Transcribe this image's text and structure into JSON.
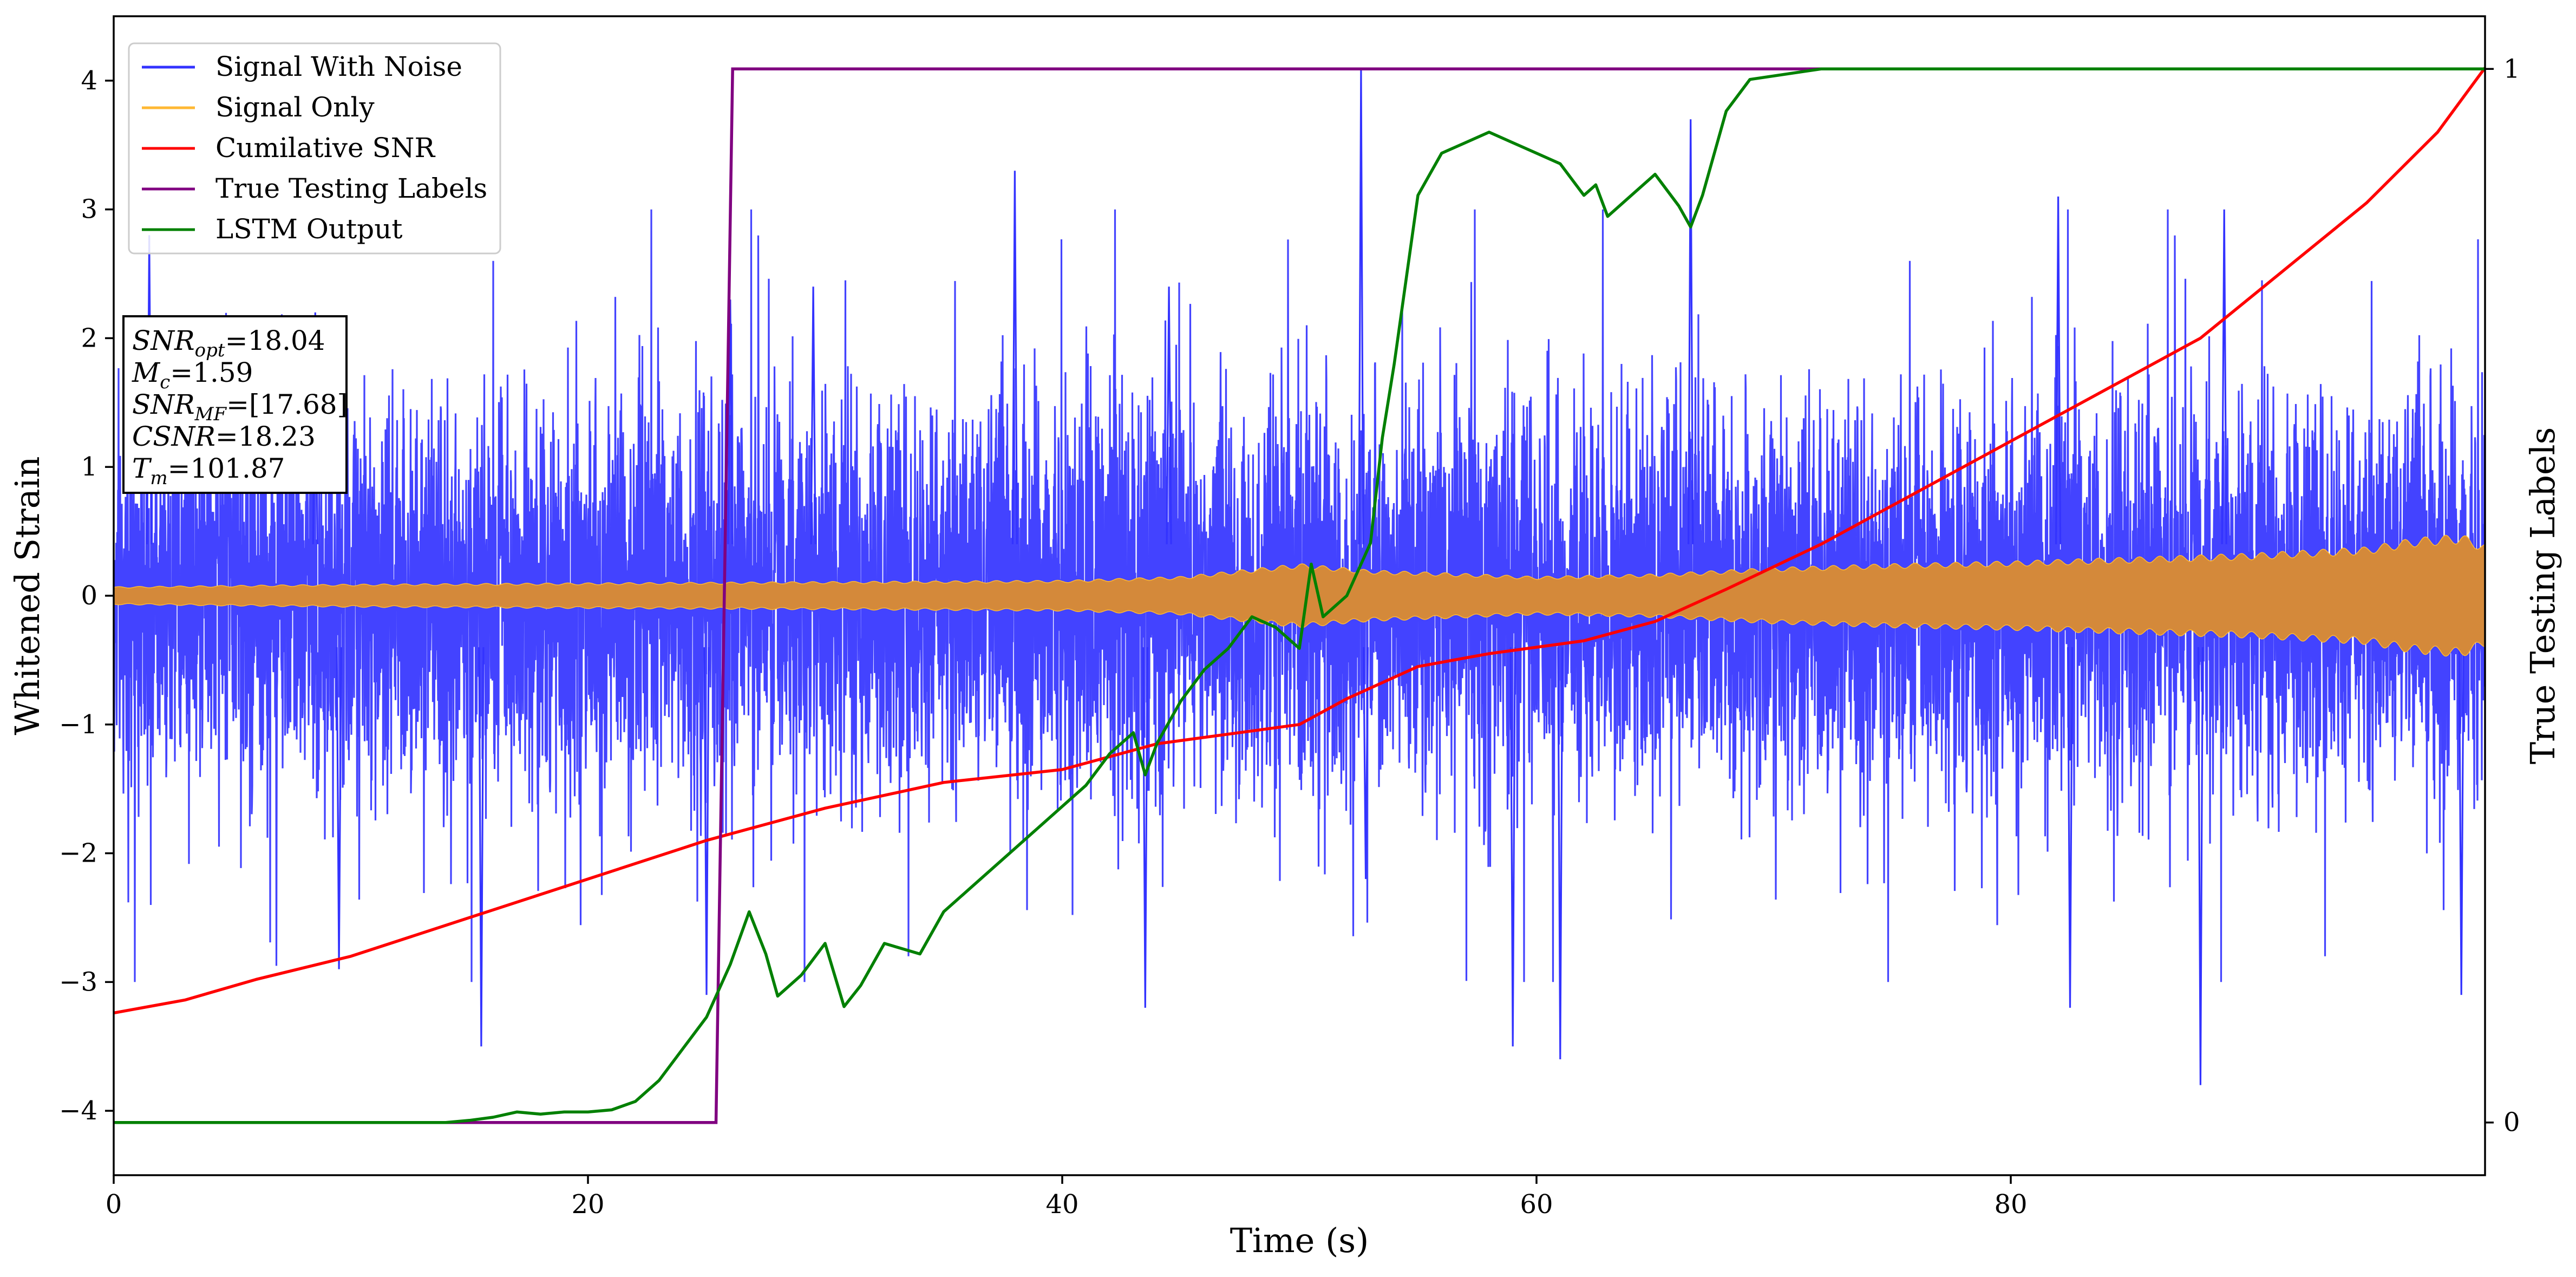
{
  "chart_data": {
    "type": "line",
    "xlabel": "Time (s)",
    "ylabel": "Whitened Strain",
    "y2label": "True Testing Labels",
    "xlim": [
      0,
      100
    ],
    "ylim": [
      -4.5,
      4.5
    ],
    "y2lim": [
      -0.05,
      1.05
    ],
    "x_ticks": [
      0,
      20,
      40,
      60,
      80
    ],
    "y_ticks": [
      -4,
      -3,
      -2,
      -1,
      0,
      1,
      2,
      3,
      4
    ],
    "y2_ticks": [
      0,
      1
    ],
    "grid": false,
    "legend_position": "top-left",
    "colors": {
      "signal_with_noise": "#3333ff",
      "signal_only": "#ffb833",
      "signal_only_fill": "#d4893a",
      "cumulative_snr": "#ff0000",
      "true_labels": "#800080",
      "lstm_output": "#008000"
    },
    "series": [
      {
        "name": "Signal With Noise",
        "axis": "left",
        "style": "dense noisy waveform",
        "envelope_typical_abs": 1.2,
        "peaks": [
          [
            1.5,
            2.8
          ],
          [
            8.5,
            2.2
          ],
          [
            9.5,
            -2.9
          ],
          [
            15.5,
            -3.5
          ],
          [
            25.0,
            -3.1
          ],
          [
            26.0,
            2.3
          ],
          [
            29.5,
            2.4
          ],
          [
            38.0,
            3.3
          ],
          [
            43.5,
            -3.2
          ],
          [
            44.5,
            2.4
          ],
          [
            52.6,
            4.1
          ],
          [
            52.8,
            -2.2
          ],
          [
            59.0,
            -3.5
          ],
          [
            61.0,
            -3.6
          ],
          [
            66.5,
            3.7
          ],
          [
            82.0,
            3.1
          ],
          [
            82.5,
            -3.2
          ],
          [
            88.0,
            -3.8
          ],
          [
            89.0,
            3.0
          ],
          [
            99.0,
            -3.1
          ]
        ]
      },
      {
        "name": "Signal Only",
        "axis": "left",
        "style": "chirp envelope",
        "envelope": [
          [
            0,
            0.07
          ],
          [
            10,
            0.09
          ],
          [
            20,
            0.1
          ],
          [
            30,
            0.11
          ],
          [
            40,
            0.12
          ],
          [
            45,
            0.15
          ],
          [
            50,
            0.25
          ],
          [
            53,
            0.2
          ],
          [
            56,
            0.18
          ],
          [
            60,
            0.15
          ],
          [
            65,
            0.17
          ],
          [
            70,
            0.22
          ],
          [
            75,
            0.25
          ],
          [
            80,
            0.27
          ],
          [
            85,
            0.3
          ],
          [
            90,
            0.33
          ],
          [
            95,
            0.38
          ],
          [
            97,
            0.45
          ],
          [
            99,
            0.48
          ],
          [
            100,
            0.4
          ]
        ]
      },
      {
        "name": "Cumilative SNR",
        "axis": "left",
        "points": [
          [
            0,
            -3.24
          ],
          [
            3,
            -3.14
          ],
          [
            6,
            -2.98
          ],
          [
            10,
            -2.8
          ],
          [
            15,
            -2.5
          ],
          [
            20,
            -2.2
          ],
          [
            25,
            -1.9
          ],
          [
            30,
            -1.65
          ],
          [
            35,
            -1.45
          ],
          [
            40,
            -1.35
          ],
          [
            44,
            -1.15
          ],
          [
            48,
            -1.05
          ],
          [
            50,
            -1.0
          ],
          [
            52,
            -0.8
          ],
          [
            55,
            -0.55
          ],
          [
            58,
            -0.45
          ],
          [
            62,
            -0.35
          ],
          [
            65,
            -0.2
          ],
          [
            68,
            0.05
          ],
          [
            72,
            0.4
          ],
          [
            76,
            0.8
          ],
          [
            80,
            1.2
          ],
          [
            84,
            1.6
          ],
          [
            88,
            2.0
          ],
          [
            92,
            2.6
          ],
          [
            95,
            3.05
          ],
          [
            98,
            3.6
          ],
          [
            100,
            4.1
          ]
        ]
      },
      {
        "name": "True Testing Labels",
        "axis": "right",
        "points": [
          [
            0,
            0
          ],
          [
            25.4,
            0
          ],
          [
            26.1,
            1
          ],
          [
            100,
            1
          ]
        ]
      },
      {
        "name": "LSTM Output",
        "axis": "right",
        "points": [
          [
            0,
            0
          ],
          [
            10,
            0
          ],
          [
            14,
            0
          ],
          [
            15,
            0.002
          ],
          [
            16,
            0.005
          ],
          [
            17,
            0.01
          ],
          [
            18,
            0.008
          ],
          [
            19,
            0.01
          ],
          [
            20,
            0.01
          ],
          [
            21,
            0.012
          ],
          [
            22,
            0.02
          ],
          [
            23,
            0.04
          ],
          [
            24,
            0.07
          ],
          [
            25,
            0.1
          ],
          [
            26,
            0.15
          ],
          [
            26.8,
            0.2
          ],
          [
            27.5,
            0.16
          ],
          [
            28,
            0.12
          ],
          [
            29,
            0.14
          ],
          [
            30,
            0.17
          ],
          [
            30.8,
            0.11
          ],
          [
            31.5,
            0.13
          ],
          [
            32.5,
            0.17
          ],
          [
            34,
            0.16
          ],
          [
            35,
            0.2
          ],
          [
            36,
            0.22
          ],
          [
            37,
            0.24
          ],
          [
            38,
            0.26
          ],
          [
            39,
            0.28
          ],
          [
            40,
            0.3
          ],
          [
            41,
            0.32
          ],
          [
            42,
            0.35
          ],
          [
            43,
            0.37
          ],
          [
            43.5,
            0.33
          ],
          [
            44,
            0.36
          ],
          [
            45,
            0.4
          ],
          [
            46,
            0.43
          ],
          [
            47,
            0.45
          ],
          [
            48,
            0.48
          ],
          [
            49,
            0.47
          ],
          [
            50,
            0.45
          ],
          [
            50.5,
            0.53
          ],
          [
            51,
            0.48
          ],
          [
            52,
            0.5
          ],
          [
            53,
            0.55
          ],
          [
            53.5,
            0.65
          ],
          [
            54,
            0.72
          ],
          [
            55,
            0.88
          ],
          [
            56,
            0.92
          ],
          [
            57,
            0.93
          ],
          [
            58,
            0.94
          ],
          [
            59,
            0.93
          ],
          [
            60,
            0.92
          ],
          [
            61,
            0.91
          ],
          [
            62,
            0.88
          ],
          [
            62.5,
            0.89
          ],
          [
            63,
            0.86
          ],
          [
            64,
            0.88
          ],
          [
            65,
            0.9
          ],
          [
            66,
            0.87
          ],
          [
            66.5,
            0.85
          ],
          [
            67,
            0.88
          ],
          [
            68,
            0.96
          ],
          [
            69,
            0.99
          ],
          [
            72,
            1.0
          ],
          [
            100,
            1.0
          ]
        ]
      }
    ],
    "annotation_box": {
      "position": "upper-left",
      "lines": [
        {
          "label": "SNR",
          "sub": "opt",
          "value": "=18.04"
        },
        {
          "label": "M",
          "sub": "c",
          "value": "=1.59"
        },
        {
          "label": "SNR",
          "sub": "MF",
          "value": "=[17.68]"
        },
        {
          "label": "CSNR",
          "sub": "",
          "value": "=18.23"
        },
        {
          "label": "T",
          "sub": "m",
          "value": "=101.87"
        }
      ]
    }
  }
}
